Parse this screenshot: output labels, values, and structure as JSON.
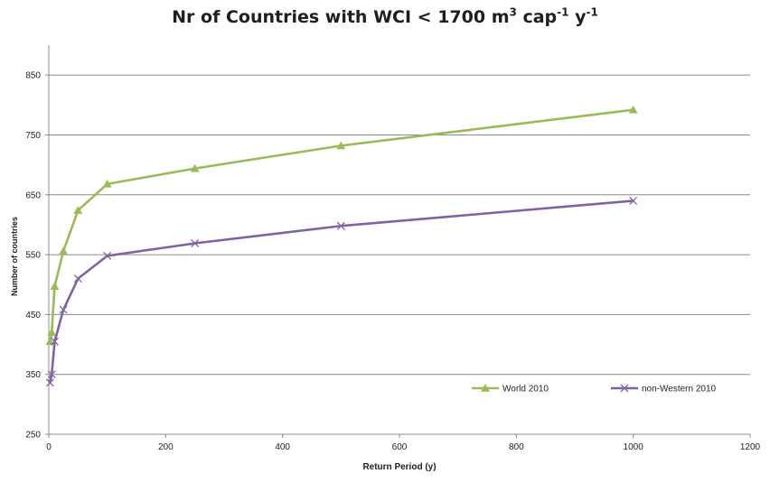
{
  "chart_data": {
    "type": "line",
    "title": {
      "main": "Nr of Countries with WCI < 1700 m",
      "unit_exp": "3",
      "middle": " cap",
      "cap_exp": "-1",
      "y_part": " y",
      "y_exp": "-1"
    },
    "xlabel": "Return Period (y)",
    "ylabel": "Number of countries",
    "xlim": [
      0,
      1200
    ],
    "ylim": [
      250,
      900
    ],
    "x_ticks": [
      "0",
      "200",
      "400",
      "600",
      "800",
      "1000",
      "1200"
    ],
    "y_ticks": [
      "250",
      "350",
      "450",
      "550",
      "650",
      "750",
      "850"
    ],
    "grid": true,
    "legend": "bottom-right",
    "series": [
      {
        "name": "World 2010",
        "color": "#9bbb59",
        "marker": "triangle",
        "x": [
          2,
          5,
          10,
          25,
          50,
          100,
          250,
          500,
          1000
        ],
        "y": [
          405,
          420,
          497,
          556,
          624,
          668,
          694,
          732,
          792
        ]
      },
      {
        "name": "non-Western 2010",
        "color": "#8064a2",
        "marker": "x",
        "x": [
          2,
          5,
          10,
          25,
          50,
          100,
          250,
          500,
          1000
        ],
        "y": [
          336,
          350,
          405,
          458,
          510,
          548,
          569,
          598,
          640
        ]
      }
    ]
  }
}
